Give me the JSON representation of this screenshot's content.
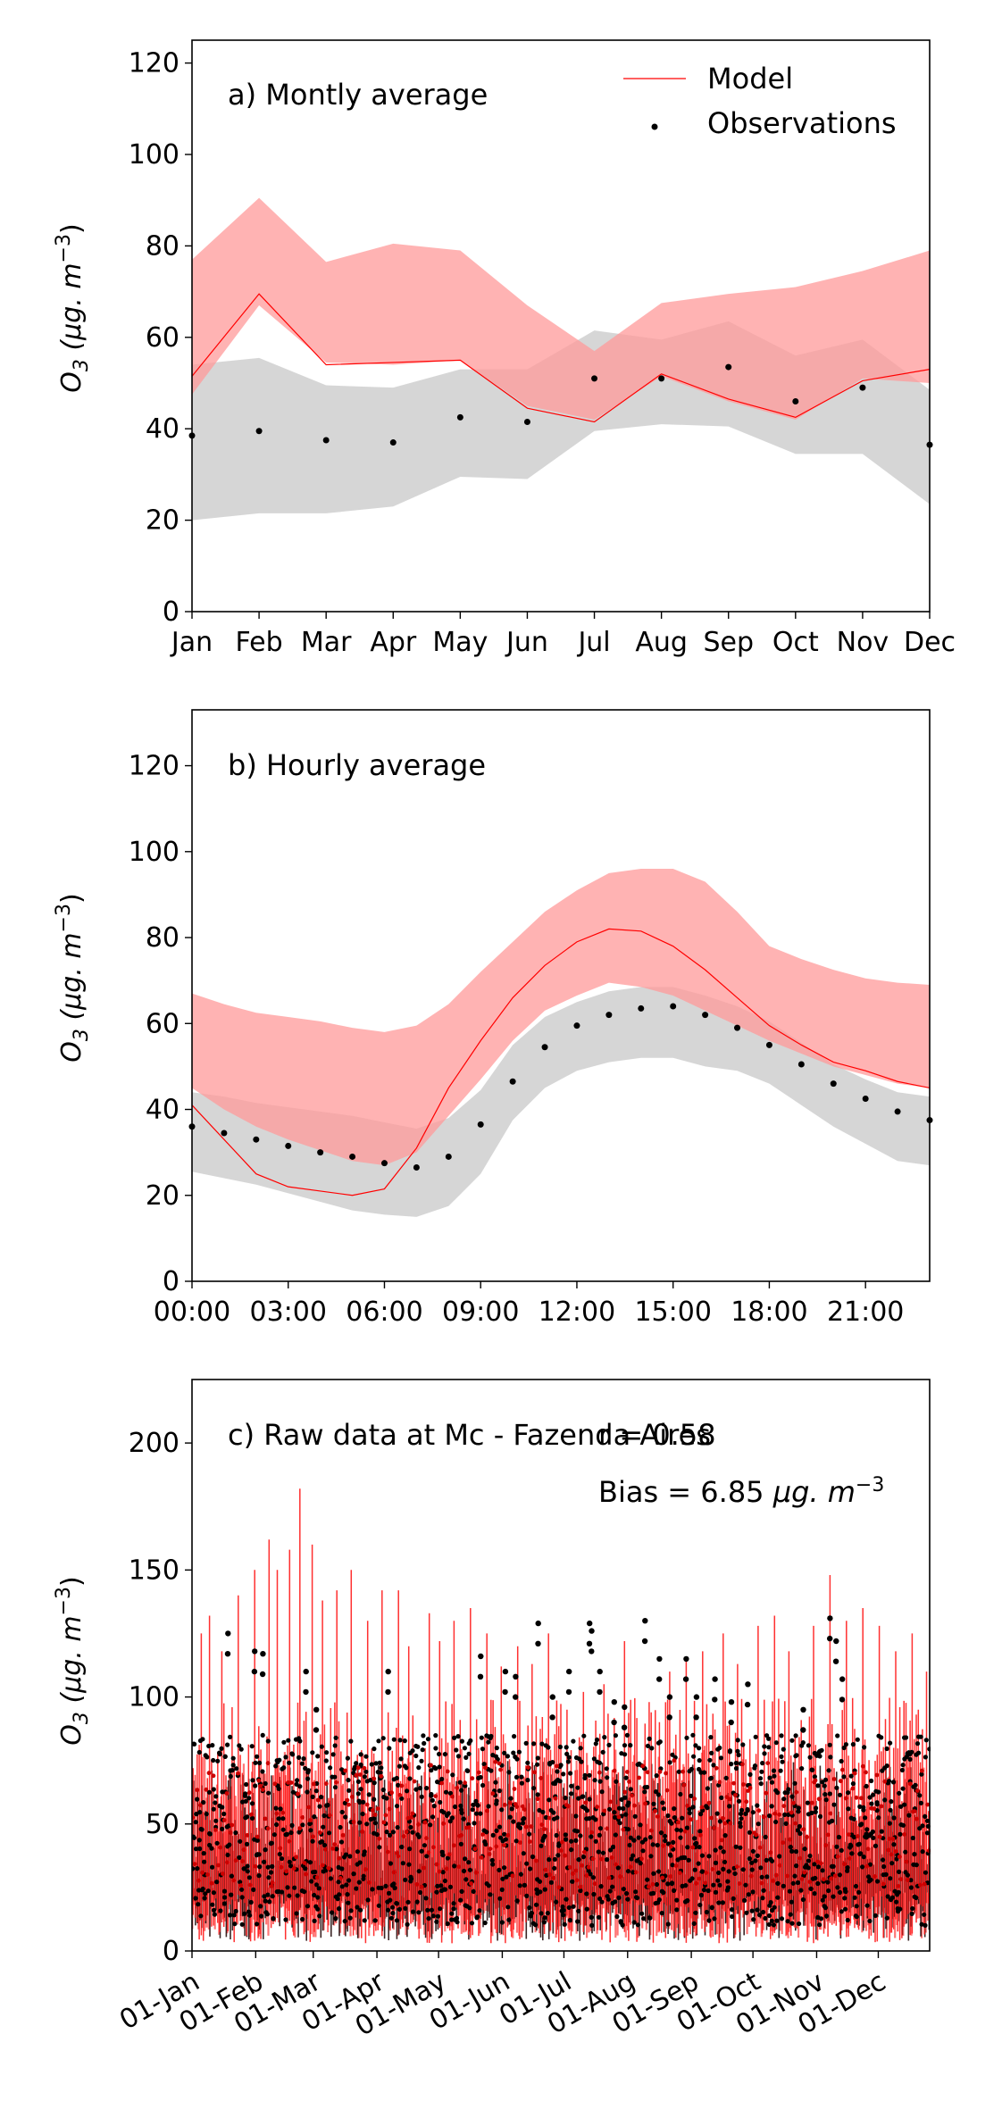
{
  "colors": {
    "model": "#ff0000",
    "model_band": "#ff9999",
    "obs_band": "#cccccc",
    "obs": "#000000"
  },
  "chart_data": [
    {
      "type": "line",
      "title": "a) Montly average",
      "ylabel_main": "O",
      "ylabel_sub": "3",
      "ylabel_unit": " (μg. m",
      "ylabel_exp": "−3",
      "ylabel_end": ")",
      "ylim": [
        0,
        125
      ],
      "yticks": [
        "0",
        "20",
        "40",
        "60",
        "80",
        "100",
        "120"
      ],
      "categories": [
        "Jan",
        "Feb",
        "Mar",
        "Apr",
        "May",
        "Jun",
        "Jul",
        "Aug",
        "Sep",
        "Oct",
        "Nov",
        "Dec"
      ],
      "legend": {
        "model": "Model",
        "observations": "Observations",
        "placement": "top-right"
      },
      "model": [
        51.5,
        69.5,
        54,
        54.5,
        55,
        44.5,
        41.5,
        52,
        46.5,
        42.5,
        50.5,
        53
      ],
      "model_upper": [
        77,
        90.5,
        76.5,
        80.5,
        79,
        67,
        57,
        67.5,
        69.5,
        71,
        74.5,
        79
      ],
      "model_lower": [
        47.5,
        67,
        54.5,
        54,
        55,
        45,
        42,
        51.5,
        46,
        42,
        51,
        50
      ],
      "obs": [
        38.5,
        39.5,
        37.5,
        37,
        42.5,
        41.5,
        51,
        51,
        53.5,
        46,
        49,
        36.5
      ],
      "obs_upper": [
        54,
        55.5,
        49.5,
        49,
        53,
        53,
        61.5,
        59.5,
        63.5,
        56,
        59.5,
        48.5
      ],
      "obs_lower": [
        20,
        21.5,
        21.5,
        23,
        29.5,
        29,
        39.5,
        41,
        40.5,
        34.5,
        34.5,
        23.5
      ]
    },
    {
      "type": "line",
      "title": "b) Hourly average",
      "ylabel_main": "O",
      "ylabel_sub": "3",
      "ylabel_unit": " (μg. m",
      "ylabel_exp": "−3",
      "ylabel_end": ")",
      "ylim": [
        0,
        133
      ],
      "yticks": [
        "0",
        "20",
        "40",
        "60",
        "80",
        "100",
        "120"
      ],
      "xticks": [
        "00:00",
        "03:00",
        "06:00",
        "09:00",
        "12:00",
        "15:00",
        "18:00",
        "21:00"
      ],
      "x": [
        0,
        1,
        2,
        3,
        4,
        5,
        6,
        7,
        8,
        9,
        10,
        11,
        12,
        13,
        14,
        15,
        16,
        17,
        18,
        19,
        20,
        21,
        22,
        23
      ],
      "model": [
        41,
        33,
        25,
        22,
        21,
        20,
        21.5,
        31,
        45,
        56,
        66,
        73.5,
        79,
        82,
        81.5,
        78,
        72.5,
        66,
        59.5,
        55,
        51,
        49,
        46.5,
        45
      ],
      "model_upper": [
        67,
        64.5,
        62.5,
        61.5,
        60.5,
        59,
        58,
        59.5,
        64.5,
        72,
        79,
        86,
        91,
        95,
        96,
        96,
        93,
        86,
        78,
        75,
        72.5,
        70.5,
        69.5,
        69
      ],
      "model_lower": [
        45,
        40,
        36,
        33,
        30.5,
        28,
        27,
        30,
        38.5,
        47,
        56,
        63,
        66.5,
        69.5,
        68.5,
        66.5,
        63,
        59.5,
        56,
        53,
        50,
        48,
        46,
        45
      ],
      "obs": [
        36,
        34.5,
        33,
        31.5,
        30,
        29,
        27.5,
        26.5,
        29,
        36.5,
        46.5,
        54.5,
        59.5,
        62,
        63.5,
        64,
        62,
        59,
        55,
        50.5,
        46,
        42.5,
        39.5,
        37.5
      ],
      "obs_upper": [
        44,
        43,
        41.5,
        40.5,
        39.5,
        38.5,
        37,
        35.5,
        38,
        44.5,
        55,
        61.5,
        65,
        67.5,
        68.5,
        68.5,
        66.5,
        64,
        60.5,
        55.5,
        50.5,
        47,
        44,
        43
      ],
      "obs_lower": [
        25.5,
        24,
        22.5,
        20.5,
        18.5,
        16.5,
        15.5,
        15,
        17.5,
        25,
        37.5,
        45,
        49,
        51,
        52,
        52,
        50,
        49,
        46,
        41,
        36,
        32,
        28,
        27
      ]
    },
    {
      "type": "line",
      "title": "c) Raw data at Mc - Fazenda Aires",
      "r_label": "r = 0.58",
      "bias_prefix": "Bias = 6.85 ",
      "bias_unit": "μg. m",
      "bias_exp": "−3",
      "ylabel_main": "O",
      "ylabel_sub": "3",
      "ylabel_unit": " (μg. m",
      "ylabel_exp": "−3",
      "ylabel_end": ")",
      "ylim": [
        0,
        225
      ],
      "yticks": [
        "0",
        "50",
        "100",
        "150",
        "200"
      ],
      "xticks": [
        "01-Jan",
        "01-Feb",
        "01-Mar",
        "01-Apr",
        "01-May",
        "01-Jun",
        "01-Jul",
        "01-Aug",
        "01-Sep",
        "01-Oct",
        "01-Nov",
        "01-Dec"
      ],
      "xtick_days": [
        0,
        31,
        59,
        90,
        120,
        151,
        181,
        212,
        243,
        273,
        304,
        334
      ],
      "xlim_days": [
        0,
        359
      ],
      "model_spikes": [
        [
          4,
          125
        ],
        [
          8,
          132
        ],
        [
          14,
          118
        ],
        [
          22,
          140
        ],
        [
          30,
          150
        ],
        [
          37,
          162
        ],
        [
          41,
          150
        ],
        [
          47,
          158
        ],
        [
          52,
          182
        ],
        [
          58,
          160
        ],
        [
          63,
          138
        ],
        [
          70,
          142
        ],
        [
          77,
          150
        ],
        [
          85,
          130
        ],
        [
          92,
          142
        ],
        [
          100,
          142
        ],
        [
          105,
          120
        ],
        [
          115,
          133
        ],
        [
          120,
          122
        ],
        [
          127,
          130
        ],
        [
          135,
          135
        ],
        [
          143,
          125
        ],
        [
          150,
          112
        ],
        [
          158,
          120
        ],
        [
          165,
          113
        ],
        [
          173,
          125
        ],
        [
          182,
          95
        ],
        [
          190,
          102
        ],
        [
          200,
          105
        ],
        [
          210,
          122
        ],
        [
          222,
          98
        ],
        [
          232,
          110
        ],
        [
          240,
          115
        ],
        [
          248,
          118
        ],
        [
          258,
          125
        ],
        [
          265,
          113
        ],
        [
          275,
          128
        ],
        [
          283,
          132
        ],
        [
          290,
          118
        ],
        [
          302,
          128
        ],
        [
          310,
          148
        ],
        [
          318,
          130
        ],
        [
          326,
          135
        ],
        [
          334,
          128
        ],
        [
          342,
          118
        ],
        [
          350,
          125
        ],
        [
          357,
          110
        ]
      ],
      "obs_highs": [
        [
          17,
          125
        ],
        [
          30,
          118
        ],
        [
          34,
          117
        ],
        [
          55,
          110
        ],
        [
          60,
          95
        ],
        [
          95,
          110
        ],
        [
          140,
          116
        ],
        [
          152,
          110
        ],
        [
          157,
          108
        ],
        [
          168,
          129
        ],
        [
          175,
          100
        ],
        [
          183,
          110
        ],
        [
          193,
          129
        ],
        [
          194,
          126
        ],
        [
          198,
          110
        ],
        [
          205,
          98
        ],
        [
          210,
          96
        ],
        [
          220,
          130
        ],
        [
          227,
          115
        ],
        [
          232,
          100
        ],
        [
          240,
          115
        ],
        [
          245,
          100
        ],
        [
          254,
          107
        ],
        [
          262,
          98
        ],
        [
          270,
          105
        ],
        [
          297,
          95
        ],
        [
          310,
          131
        ],
        [
          313,
          122
        ],
        [
          316,
          107
        ]
      ]
    }
  ]
}
